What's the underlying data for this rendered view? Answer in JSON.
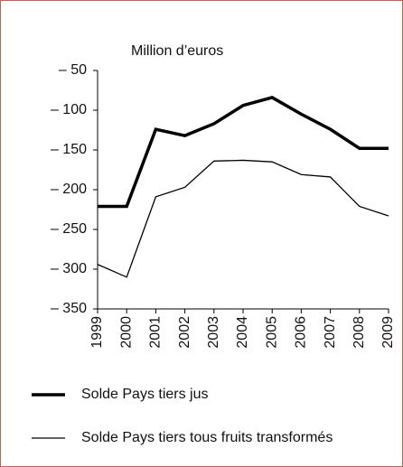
{
  "chart_data": {
    "type": "line",
    "y_axis_label": "Million d’euros",
    "categories": [
      "1999",
      "2000",
      "2001",
      "2002",
      "2003",
      "2004",
      "2005",
      "2006",
      "2007",
      "2008",
      "2009"
    ],
    "series": [
      {
        "name": "Solde Pays tiers jus",
        "color": "#000000",
        "width": 3.5,
        "values": [
          -221,
          -221,
          -124,
          -132,
          -117,
          -94,
          -84,
          -105,
          -124,
          -148,
          -148
        ]
      },
      {
        "name": "Solde Pays tiers tous fruits transformés",
        "color": "#000000",
        "width": 1.3,
        "values": [
          -294,
          -310,
          -209,
          -197,
          -164,
          -163,
          -165,
          -181,
          -184,
          -221,
          -233
        ]
      }
    ],
    "ylim": [
      -350,
      -50
    ],
    "yticks": [
      {
        "value": -50,
        "label": "– 50"
      },
      {
        "value": -100,
        "label": "– 100"
      },
      {
        "value": -150,
        "label": "– 150"
      },
      {
        "value": -200,
        "label": "– 200"
      },
      {
        "value": -250,
        "label": "– 250"
      },
      {
        "value": -300,
        "label": "– 300"
      },
      {
        "value": -350,
        "label": "– 350"
      }
    ],
    "grid": false
  }
}
